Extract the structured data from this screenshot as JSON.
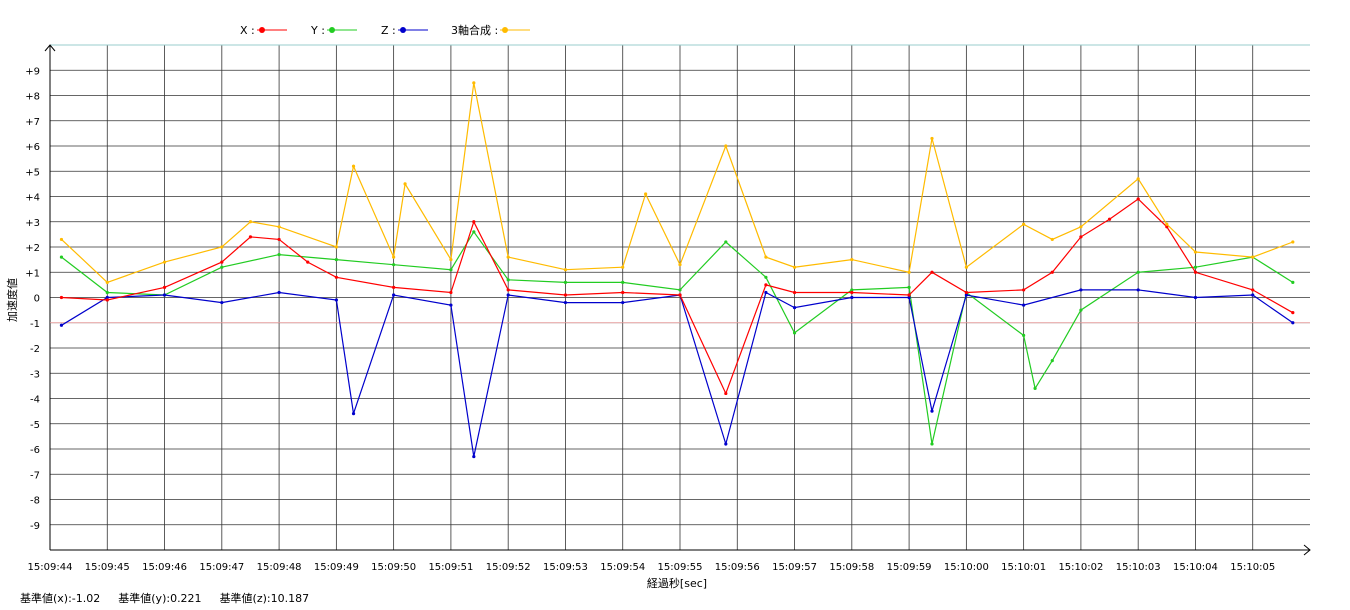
{
  "legend": [
    {
      "label": "X :",
      "color": "#ff0000"
    },
    {
      "label": "Y :",
      "color": "#22cc22"
    },
    {
      "label": "Z :",
      "color": "#0000cc"
    },
    {
      "label": "3軸合成 :",
      "color": "#ffbb00"
    }
  ],
  "footer": {
    "base_x": "基準値(x):-1.02",
    "base_y": "基準値(y):0.221",
    "base_z": "基準値(z):10.187"
  },
  "chart_data": {
    "type": "line",
    "xlabel": "経過秒[sec]",
    "ylabel": "加速度値",
    "ylim": [
      -10,
      10
    ],
    "yticks": [
      "+9",
      "+8",
      "+7",
      "+6",
      "+5",
      "+4",
      "+3",
      "+2",
      "+1",
      "0",
      "-1",
      "-2",
      "-3",
      "-4",
      "-5",
      "-6",
      "-7",
      "-8",
      "-9"
    ],
    "xticks": [
      "15:09:44",
      "15:09:45",
      "15:09:46",
      "15:09:47",
      "15:09:48",
      "15:09:49",
      "15:09:50",
      "15:09:51",
      "15:09:52",
      "15:09:53",
      "15:09:54",
      "15:09:55",
      "15:09:56",
      "15:09:57",
      "15:09:58",
      "15:09:59",
      "15:10:00",
      "15:10:01",
      "15:10:02",
      "15:10:03",
      "15:10:04",
      "15:10:05"
    ],
    "xlim": [
      "15:09:44",
      "15:10:06"
    ],
    "grid": true,
    "legend_position": "top-center",
    "series_x": [
      [
        "15:09:44.2",
        0.0
      ],
      [
        "15:09:45",
        -0.1
      ],
      [
        "15:09:46",
        0.4
      ],
      [
        "15:09:47",
        1.4
      ],
      [
        "15:09:47.5",
        2.4
      ],
      [
        "15:09:48",
        2.3
      ],
      [
        "15:09:48.5",
        1.4
      ],
      [
        "15:09:49",
        0.8
      ],
      [
        "15:09:50",
        0.4
      ],
      [
        "15:09:51",
        0.2
      ],
      [
        "15:09:51.4",
        3.0
      ],
      [
        "15:09:52",
        0.3
      ],
      [
        "15:09:53",
        0.1
      ],
      [
        "15:09:54",
        0.2
      ],
      [
        "15:09:55",
        0.1
      ],
      [
        "15:09:55.8",
        -3.8
      ],
      [
        "15:09:56.5",
        0.5
      ],
      [
        "15:09:57",
        0.2
      ],
      [
        "15:09:58",
        0.2
      ],
      [
        "15:09:59",
        0.1
      ],
      [
        "15:09:59.4",
        1.0
      ],
      [
        "15:10:00",
        0.2
      ],
      [
        "15:10:01",
        0.3
      ],
      [
        "15:10:01.5",
        1.0
      ],
      [
        "15:10:02",
        2.4
      ],
      [
        "15:10:02.5",
        3.1
      ],
      [
        "15:10:03",
        3.9
      ],
      [
        "15:10:03.5",
        2.8
      ],
      [
        "15:10:04",
        1.0
      ],
      [
        "15:10:05",
        0.3
      ],
      [
        "15:10:05.7",
        -0.6
      ]
    ],
    "series_y": [
      [
        "15:09:44.2",
        1.6
      ],
      [
        "15:09:45",
        0.2
      ],
      [
        "15:09:46",
        0.1
      ],
      [
        "15:09:47",
        1.2
      ],
      [
        "15:09:48",
        1.7
      ],
      [
        "15:09:49",
        1.5
      ],
      [
        "15:09:50",
        1.3
      ],
      [
        "15:09:51",
        1.1
      ],
      [
        "15:09:51.4",
        2.6
      ],
      [
        "15:09:52",
        0.7
      ],
      [
        "15:09:53",
        0.6
      ],
      [
        "15:09:54",
        0.6
      ],
      [
        "15:09:55",
        0.3
      ],
      [
        "15:09:55.8",
        2.2
      ],
      [
        "15:09:56.5",
        0.8
      ],
      [
        "15:09:57",
        -1.4
      ],
      [
        "15:09:58",
        0.3
      ],
      [
        "15:09:59",
        0.4
      ],
      [
        "15:09:59.4",
        -5.8
      ],
      [
        "15:10:00",
        0.2
      ],
      [
        "15:10:01",
        -1.5
      ],
      [
        "15:10:01.2",
        -3.6
      ],
      [
        "15:10:01.5",
        -2.5
      ],
      [
        "15:10:02",
        -0.5
      ],
      [
        "15:10:03",
        1.0
      ],
      [
        "15:10:04",
        1.2
      ],
      [
        "15:10:05",
        1.6
      ],
      [
        "15:10:05.7",
        0.6
      ]
    ],
    "series_z": [
      [
        "15:09:44.2",
        -1.1
      ],
      [
        "15:09:45",
        0.0
      ],
      [
        "15:09:46",
        0.1
      ],
      [
        "15:09:47",
        -0.2
      ],
      [
        "15:09:48",
        0.2
      ],
      [
        "15:09:49",
        -0.1
      ],
      [
        "15:09:49.3",
        -4.6
      ],
      [
        "15:09:50",
        0.1
      ],
      [
        "15:09:51",
        -0.3
      ],
      [
        "15:09:51.4",
        -6.3
      ],
      [
        "15:09:52",
        0.1
      ],
      [
        "15:09:53",
        -0.2
      ],
      [
        "15:09:54",
        -0.2
      ],
      [
        "15:09:55",
        0.1
      ],
      [
        "15:09:55.8",
        -5.8
      ],
      [
        "15:09:56.5",
        0.2
      ],
      [
        "15:09:57",
        -0.4
      ],
      [
        "15:09:58",
        0.0
      ],
      [
        "15:09:59",
        0.0
      ],
      [
        "15:09:59.4",
        -4.5
      ],
      [
        "15:10:00",
        0.1
      ],
      [
        "15:10:01",
        -0.3
      ],
      [
        "15:10:02",
        0.3
      ],
      [
        "15:10:03",
        0.3
      ],
      [
        "15:10:04",
        0.0
      ],
      [
        "15:10:05",
        0.1
      ],
      [
        "15:10:05.7",
        -1.0
      ]
    ],
    "series_3axis": [
      [
        "15:09:44.2",
        2.3
      ],
      [
        "15:09:45",
        0.6
      ],
      [
        "15:09:46",
        1.4
      ],
      [
        "15:09:47",
        2.0
      ],
      [
        "15:09:47.5",
        3.0
      ],
      [
        "15:09:48",
        2.8
      ],
      [
        "15:09:49",
        2.0
      ],
      [
        "15:09:49.3",
        5.2
      ],
      [
        "15:09:50",
        1.6
      ],
      [
        "15:09:50.2",
        4.5
      ],
      [
        "15:09:51",
        1.5
      ],
      [
        "15:09:51.4",
        8.5
      ],
      [
        "15:09:52",
        1.6
      ],
      [
        "15:09:53",
        1.1
      ],
      [
        "15:09:54",
        1.2
      ],
      [
        "15:09:54.4",
        4.1
      ],
      [
        "15:09:55",
        1.3
      ],
      [
        "15:09:55.8",
        6.0
      ],
      [
        "15:09:56.5",
        1.6
      ],
      [
        "15:09:57",
        1.2
      ],
      [
        "15:09:58",
        1.5
      ],
      [
        "15:09:59",
        1.0
      ],
      [
        "15:09:59.4",
        6.3
      ],
      [
        "15:10:00",
        1.2
      ],
      [
        "15:10:01",
        2.9
      ],
      [
        "15:10:01.5",
        2.3
      ],
      [
        "15:10:02",
        2.8
      ],
      [
        "15:10:03",
        4.7
      ],
      [
        "15:10:03.5",
        2.9
      ],
      [
        "15:10:04",
        1.8
      ],
      [
        "15:10:05",
        1.6
      ],
      [
        "15:10:05.7",
        2.2
      ]
    ],
    "series_names": [
      "X",
      "Y",
      "Z",
      "3軸合成"
    ]
  }
}
